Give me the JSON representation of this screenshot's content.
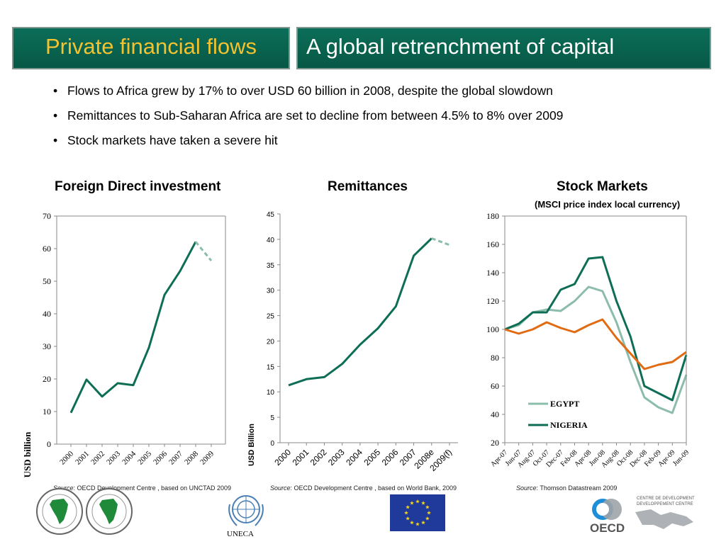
{
  "header": {
    "left_title": "Private financial flows",
    "right_title": "A global retrenchment of capital"
  },
  "bullets": [
    "Flows to Africa grew by 17%  to over USD 60 billion in 2008, despite the global slowdown",
    "Remittances to Sub-Saharan Africa are set to decline from between 4.5% to 8% over 2009",
    "Stock markets have taken a severe hit"
  ],
  "sources": [
    {
      "label": "Source",
      "text": ": OECD Development Centre , based on UNCTAD 2009"
    },
    {
      "label": "Source",
      "text": ": OECD Development Centre , based on World Bank, 2009"
    },
    {
      "label": "Source",
      "text": ": Thomson Datastream 2009"
    }
  ],
  "logos": {
    "uneca_caption": "UNECA",
    "oecd_text": "OECD",
    "devcentre_line1": "CENTRE DE DEVELOPMENT",
    "devcentre_line2": "DEVELOPPEMENT CENTRE"
  },
  "colors": {
    "header": "#0b6e58",
    "title": "#f2c230",
    "series": "#0e6e55",
    "egypt": "#8cbcaa",
    "orange": "#e06b12"
  },
  "chart_data": [
    {
      "type": "line",
      "title": "Foreign Direct investment",
      "ylabel": "USD billion",
      "categories": [
        "2000",
        "2001",
        "2002",
        "2003",
        "2004",
        "2005",
        "2006",
        "2007",
        "2008",
        "2009"
      ],
      "ylim": [
        0,
        70
      ],
      "yticks": [
        0,
        10,
        20,
        30,
        40,
        50,
        60,
        70
      ],
      "series": [
        {
          "name": "actual",
          "style": "solid",
          "values": [
            9.6,
            19.8,
            14.6,
            18.7,
            18.1,
            29.6,
            45.8,
            53.1,
            62.1,
            null
          ]
        },
        {
          "name": "forecast",
          "style": "dashed",
          "values": [
            null,
            null,
            null,
            null,
            null,
            null,
            null,
            null,
            62.1,
            56.3
          ]
        }
      ]
    },
    {
      "type": "line",
      "title": "Remittances",
      "ylabel": "USD Billion",
      "categories": [
        "2000",
        "2001",
        "2002",
        "2003",
        "2004",
        "2005",
        "2006",
        "2007",
        "2008e",
        "2009(f)"
      ],
      "ylim": [
        0,
        45
      ],
      "yticks": [
        0,
        5,
        10,
        15,
        20,
        25,
        30,
        35,
        40,
        45
      ],
      "series": [
        {
          "name": "actual",
          "style": "solid",
          "values": [
            11.3,
            12.5,
            12.9,
            15.5,
            19.3,
            22.5,
            26.8,
            36.8,
            40.2,
            null
          ]
        },
        {
          "name": "forecast",
          "style": "dashed",
          "values": [
            null,
            null,
            null,
            null,
            null,
            null,
            null,
            null,
            40.2,
            38.9
          ]
        }
      ]
    },
    {
      "type": "line",
      "title": "Stock Markets",
      "subtitle": "(MSCI price index local currency)",
      "categories": [
        "Apr-07",
        "Jun-07",
        "Aug-07",
        "Oct-07",
        "Dec-07",
        "Feb-08",
        "Apr-08",
        "Jun-08",
        "Aug-08",
        "Oct-08",
        "Dec-08",
        "Feb-09",
        "Apr-09",
        "Jun-09"
      ],
      "ylim": [
        20,
        180
      ],
      "yticks": [
        20,
        40,
        60,
        80,
        100,
        120,
        140,
        160,
        180
      ],
      "legend": {
        "placement": "bottom-left",
        "entries": [
          "EGYPT",
          "NIGERIA"
        ]
      },
      "series": [
        {
          "name": "EGYPT",
          "values": [
            100,
            103,
            112,
            114,
            113,
            120,
            130,
            127,
            105,
            77,
            52,
            45,
            41,
            68
          ]
        },
        {
          "name": "NIGERIA",
          "values": [
            100,
            104,
            112,
            112,
            128,
            132,
            150,
            151,
            120,
            95,
            60,
            55,
            50,
            82
          ]
        },
        {
          "name": "",
          "values": [
            100,
            97,
            100,
            105,
            101,
            98,
            103,
            107,
            94,
            83,
            72,
            75,
            77,
            84
          ]
        }
      ]
    }
  ]
}
